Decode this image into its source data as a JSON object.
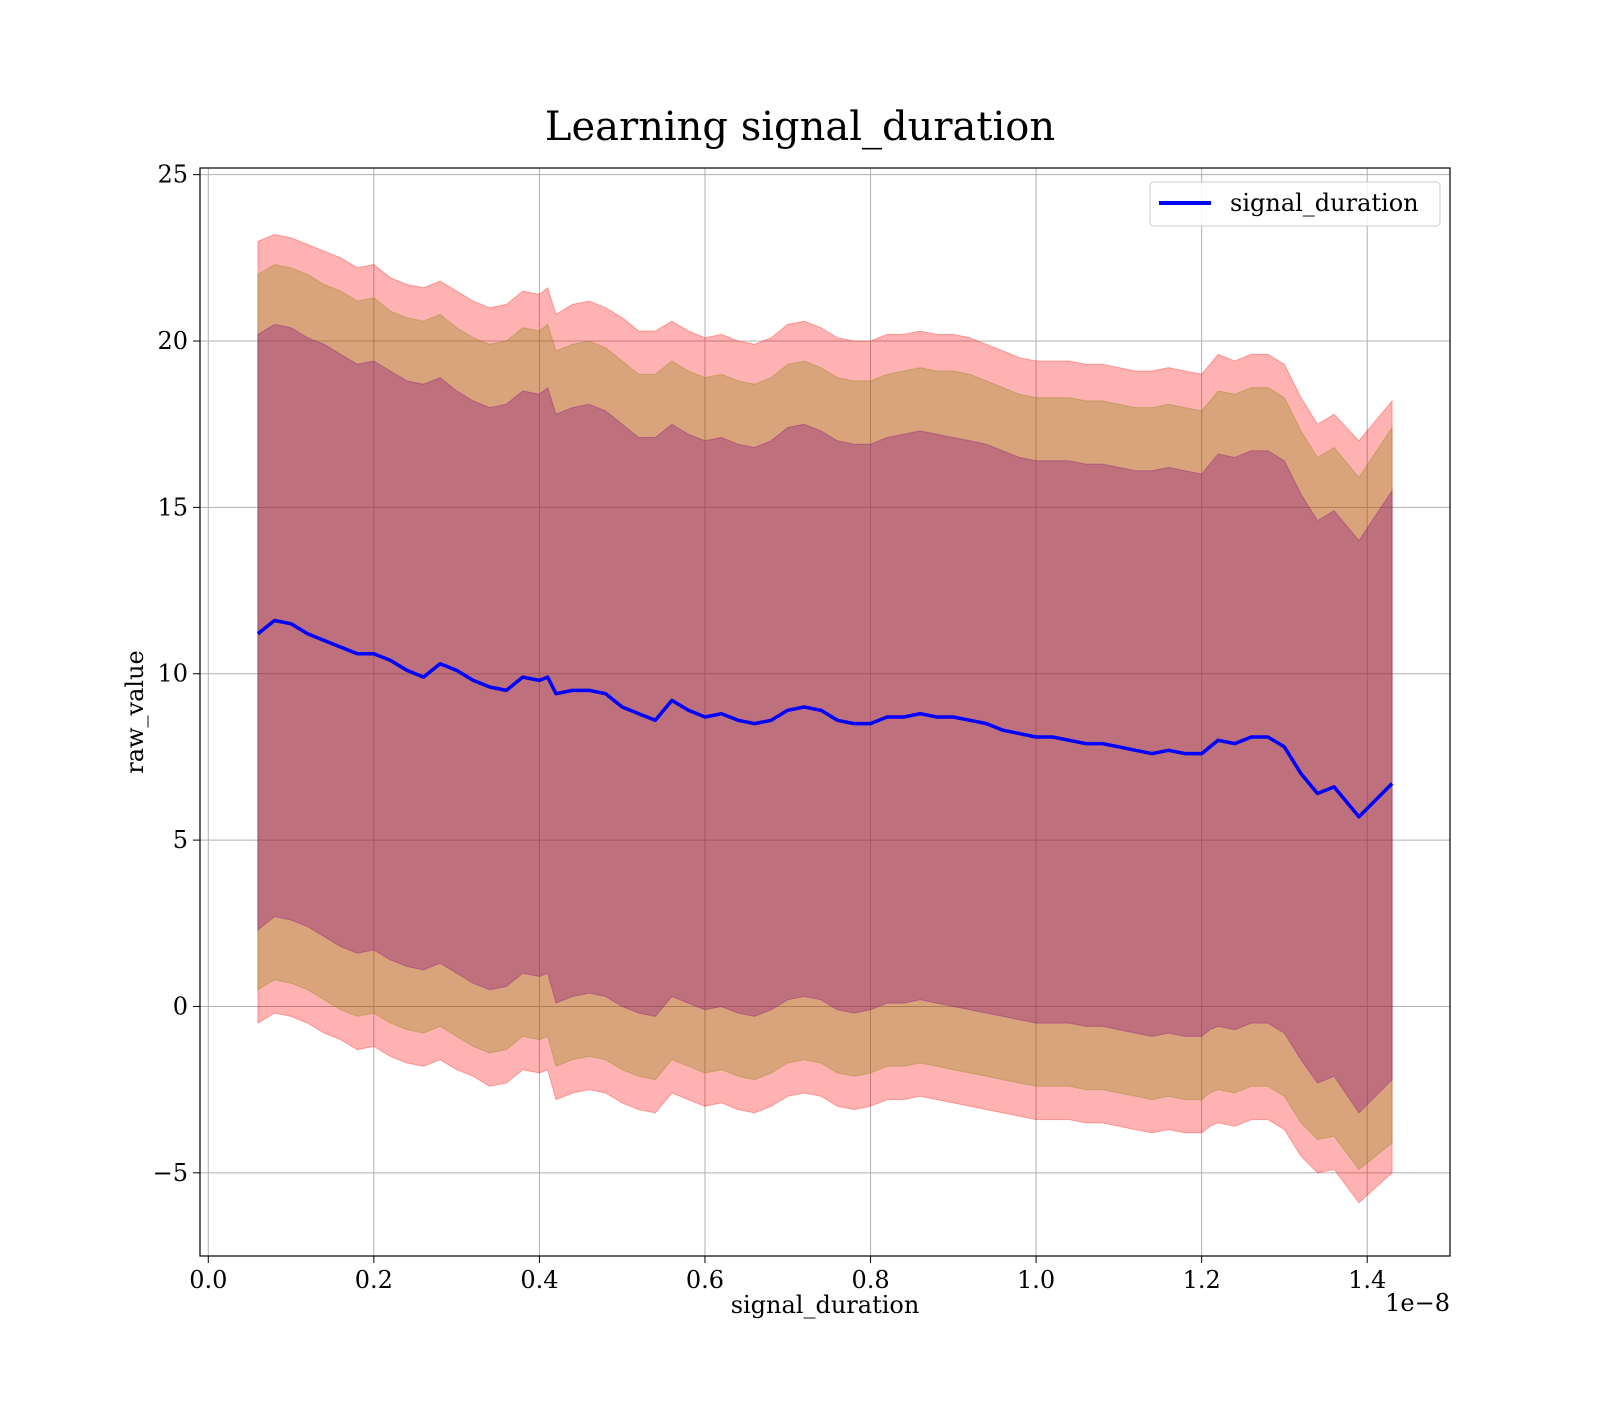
{
  "chart_data": {
    "type": "line",
    "title": "Learning signal_duration",
    "xlabel": "signal_duration",
    "ylabel": "raw_value",
    "x_offset_label": "1e−8",
    "xlim": [
      -0.01,
      1.5
    ],
    "ylim": [
      -7.5,
      25.2
    ],
    "x_ticks": [
      0.0,
      0.2,
      0.4,
      0.6,
      0.8,
      1.0,
      1.2,
      1.4
    ],
    "x_tick_labels": [
      "0.0",
      "0.2",
      "0.4",
      "0.6",
      "0.8",
      "1.0",
      "1.2",
      "1.4"
    ],
    "y_ticks": [
      -5,
      0,
      5,
      10,
      15,
      20,
      25
    ],
    "y_tick_labels": [
      "−5",
      "0",
      "5",
      "10",
      "15",
      "20",
      "25"
    ],
    "grid": true,
    "legend": {
      "position": "top-right",
      "entries": [
        "signal_duration"
      ]
    },
    "colors": {
      "line": "#0000ff",
      "band_outer": "#ff0000",
      "band_middle": "#808000",
      "band_inner": "#800080"
    },
    "x": [
      0.06,
      0.08,
      0.1,
      0.12,
      0.14,
      0.16,
      0.18,
      0.2,
      0.22,
      0.24,
      0.26,
      0.28,
      0.3,
      0.32,
      0.34,
      0.36,
      0.38,
      0.4,
      0.41,
      0.42,
      0.44,
      0.46,
      0.48,
      0.5,
      0.52,
      0.54,
      0.56,
      0.58,
      0.6,
      0.62,
      0.64,
      0.66,
      0.68,
      0.7,
      0.72,
      0.74,
      0.76,
      0.78,
      0.8,
      0.82,
      0.84,
      0.86,
      0.88,
      0.9,
      0.92,
      0.94,
      0.96,
      0.98,
      1.0,
      1.02,
      1.04,
      1.06,
      1.08,
      1.1,
      1.12,
      1.14,
      1.16,
      1.18,
      1.2,
      1.21,
      1.22,
      1.24,
      1.26,
      1.28,
      1.3,
      1.32,
      1.34,
      1.36,
      1.39,
      1.43
    ],
    "series": [
      {
        "name": "signal_duration",
        "values": [
          11.2,
          11.6,
          11.5,
          11.2,
          11.0,
          10.8,
          10.6,
          10.6,
          10.4,
          10.1,
          9.9,
          10.3,
          10.1,
          9.8,
          9.6,
          9.5,
          9.9,
          9.8,
          9.9,
          9.4,
          9.5,
          9.5,
          9.4,
          9.0,
          8.8,
          8.6,
          9.2,
          8.9,
          8.7,
          8.8,
          8.6,
          8.5,
          8.6,
          8.9,
          9.0,
          8.9,
          8.6,
          8.5,
          8.5,
          8.7,
          8.7,
          8.8,
          8.7,
          8.7,
          8.6,
          8.5,
          8.3,
          8.2,
          8.1,
          8.1,
          8.0,
          7.9,
          7.9,
          7.8,
          7.7,
          7.6,
          7.7,
          7.6,
          7.6,
          7.8,
          8.0,
          7.9,
          8.1,
          8.1,
          7.8,
          7.0,
          6.4,
          6.6,
          5.7,
          6.7
        ]
      }
    ],
    "bands": [
      {
        "color": "band_outer",
        "upper": [
          23.0,
          23.2,
          23.1,
          22.9,
          22.7,
          22.5,
          22.2,
          22.3,
          21.9,
          21.7,
          21.6,
          21.8,
          21.5,
          21.2,
          21.0,
          21.1,
          21.5,
          21.4,
          21.6,
          20.8,
          21.1,
          21.2,
          21.0,
          20.7,
          20.3,
          20.3,
          20.6,
          20.3,
          20.1,
          20.2,
          20.0,
          19.9,
          20.1,
          20.5,
          20.6,
          20.4,
          20.1,
          20.0,
          20.0,
          20.2,
          20.2,
          20.3,
          20.2,
          20.2,
          20.1,
          19.9,
          19.7,
          19.5,
          19.4,
          19.4,
          19.4,
          19.3,
          19.3,
          19.2,
          19.1,
          19.1,
          19.2,
          19.1,
          19.0,
          19.3,
          19.6,
          19.4,
          19.6,
          19.6,
          19.3,
          18.3,
          17.5,
          17.8,
          17.0,
          18.2
        ],
        "lower": [
          -0.5,
          -0.2,
          -0.3,
          -0.5,
          -0.8,
          -1.0,
          -1.3,
          -1.2,
          -1.5,
          -1.7,
          -1.8,
          -1.6,
          -1.9,
          -2.1,
          -2.4,
          -2.3,
          -1.9,
          -2.0,
          -1.9,
          -2.8,
          -2.6,
          -2.5,
          -2.6,
          -2.9,
          -3.1,
          -3.2,
          -2.6,
          -2.8,
          -3.0,
          -2.9,
          -3.1,
          -3.2,
          -3.0,
          -2.7,
          -2.6,
          -2.7,
          -3.0,
          -3.1,
          -3.0,
          -2.8,
          -2.8,
          -2.7,
          -2.8,
          -2.9,
          -3.0,
          -3.1,
          -3.2,
          -3.3,
          -3.4,
          -3.4,
          -3.4,
          -3.5,
          -3.5,
          -3.6,
          -3.7,
          -3.8,
          -3.7,
          -3.8,
          -3.8,
          -3.6,
          -3.5,
          -3.6,
          -3.4,
          -3.4,
          -3.7,
          -4.5,
          -5.0,
          -4.9,
          -5.9,
          -5.0
        ]
      },
      {
        "color": "band_middle",
        "upper": [
          22.0,
          22.3,
          22.2,
          22.0,
          21.7,
          21.5,
          21.2,
          21.3,
          20.9,
          20.7,
          20.6,
          20.8,
          20.4,
          20.1,
          19.9,
          20.0,
          20.4,
          20.3,
          20.5,
          19.7,
          19.9,
          20.0,
          19.8,
          19.4,
          19.0,
          19.0,
          19.4,
          19.1,
          18.9,
          19.0,
          18.8,
          18.7,
          18.9,
          19.3,
          19.4,
          19.2,
          18.9,
          18.8,
          18.8,
          19.0,
          19.1,
          19.2,
          19.1,
          19.1,
          19.0,
          18.8,
          18.6,
          18.4,
          18.3,
          18.3,
          18.3,
          18.2,
          18.2,
          18.1,
          18.0,
          18.0,
          18.1,
          18.0,
          17.9,
          18.2,
          18.5,
          18.4,
          18.6,
          18.6,
          18.3,
          17.3,
          16.5,
          16.8,
          15.9,
          17.4
        ],
        "lower": [
          0.5,
          0.8,
          0.7,
          0.5,
          0.2,
          -0.1,
          -0.3,
          -0.2,
          -0.5,
          -0.7,
          -0.8,
          -0.6,
          -0.9,
          -1.2,
          -1.4,
          -1.3,
          -0.9,
          -1.0,
          -0.9,
          -1.8,
          -1.6,
          -1.5,
          -1.6,
          -1.9,
          -2.1,
          -2.2,
          -1.6,
          -1.8,
          -2.0,
          -1.9,
          -2.1,
          -2.2,
          -2.0,
          -1.7,
          -1.6,
          -1.7,
          -2.0,
          -2.1,
          -2.0,
          -1.8,
          -1.8,
          -1.7,
          -1.8,
          -1.9,
          -2.0,
          -2.1,
          -2.2,
          -2.3,
          -2.4,
          -2.4,
          -2.4,
          -2.5,
          -2.5,
          -2.6,
          -2.7,
          -2.8,
          -2.7,
          -2.8,
          -2.8,
          -2.6,
          -2.5,
          -2.6,
          -2.4,
          -2.4,
          -2.7,
          -3.5,
          -4.0,
          -3.9,
          -4.9,
          -4.1
        ]
      },
      {
        "color": "band_inner",
        "upper": [
          20.2,
          20.5,
          20.4,
          20.1,
          19.9,
          19.6,
          19.3,
          19.4,
          19.1,
          18.8,
          18.7,
          18.9,
          18.5,
          18.2,
          18.0,
          18.1,
          18.5,
          18.4,
          18.6,
          17.8,
          18.0,
          18.1,
          17.9,
          17.5,
          17.1,
          17.1,
          17.5,
          17.2,
          17.0,
          17.1,
          16.9,
          16.8,
          17.0,
          17.4,
          17.5,
          17.3,
          17.0,
          16.9,
          16.9,
          17.1,
          17.2,
          17.3,
          17.2,
          17.1,
          17.0,
          16.9,
          16.7,
          16.5,
          16.4,
          16.4,
          16.4,
          16.3,
          16.3,
          16.2,
          16.1,
          16.1,
          16.2,
          16.1,
          16.0,
          16.3,
          16.6,
          16.5,
          16.7,
          16.7,
          16.4,
          15.4,
          14.6,
          14.9,
          14.0,
          15.5
        ],
        "lower": [
          2.3,
          2.7,
          2.6,
          2.4,
          2.1,
          1.8,
          1.6,
          1.7,
          1.4,
          1.2,
          1.1,
          1.3,
          1.0,
          0.7,
          0.5,
          0.6,
          1.0,
          0.9,
          1.0,
          0.1,
          0.3,
          0.4,
          0.3,
          0.0,
          -0.2,
          -0.3,
          0.3,
          0.1,
          -0.1,
          0.0,
          -0.2,
          -0.3,
          -0.1,
          0.2,
          0.3,
          0.2,
          -0.1,
          -0.2,
          -0.1,
          0.1,
          0.1,
          0.2,
          0.1,
          0.0,
          -0.1,
          -0.2,
          -0.3,
          -0.4,
          -0.5,
          -0.5,
          -0.5,
          -0.6,
          -0.6,
          -0.7,
          -0.8,
          -0.9,
          -0.8,
          -0.9,
          -0.9,
          -0.7,
          -0.6,
          -0.7,
          -0.5,
          -0.5,
          -0.8,
          -1.6,
          -2.3,
          -2.1,
          -3.2,
          -2.2
        ]
      }
    ]
  }
}
